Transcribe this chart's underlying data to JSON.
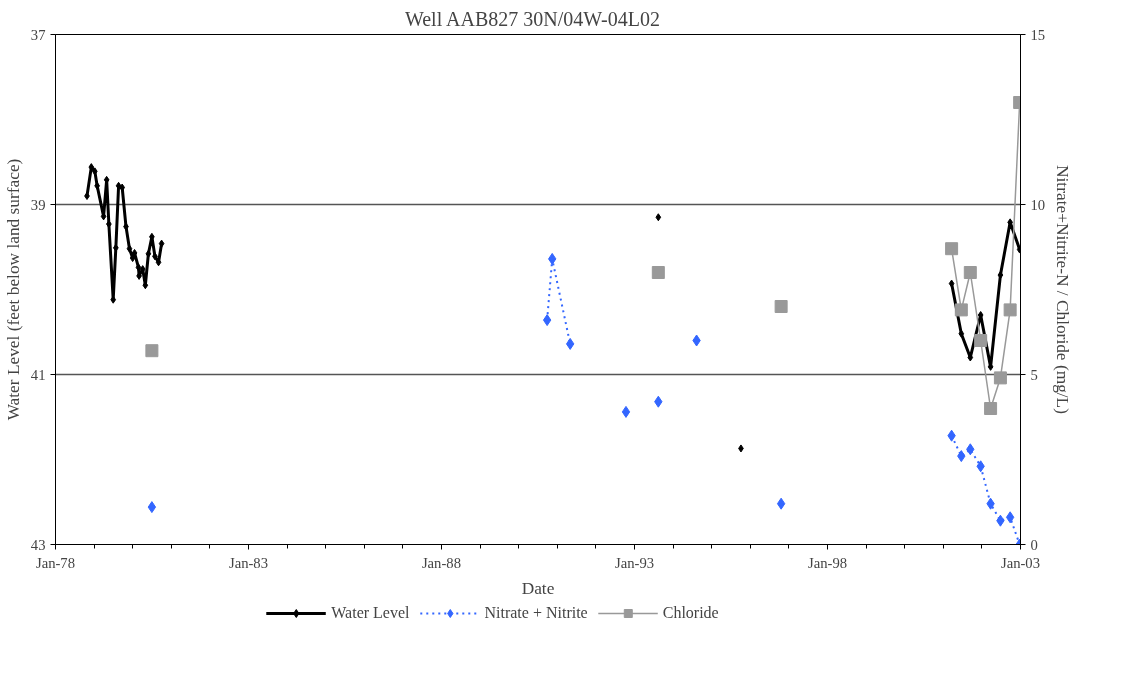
{
  "chart_data": {
    "type": "line",
    "title": "Well AAB827   30N/04W-04L02",
    "xlabel": "Date",
    "ylabel": "Water Level (feet below land surface)",
    "y2label": "Nitrate+Nitrite-N / Chloride (mg/L)",
    "xlim": [
      "1978-01-01",
      "2003-01-01"
    ],
    "xticks": [
      {
        "value": "1978-01-01",
        "label": "Jan-78"
      },
      {
        "value": "1983-01-01",
        "label": "Jan-83"
      },
      {
        "value": "1988-01-01",
        "label": "Jan-88"
      },
      {
        "value": "1993-01-01",
        "label": "Jan-93"
      },
      {
        "value": "1998-01-01",
        "label": "Jan-98"
      },
      {
        "value": "2003-01-01",
        "label": "Jan-03"
      }
    ],
    "ylim": [
      43,
      37
    ],
    "yticks": [
      37,
      39,
      41,
      43
    ],
    "y2lim": [
      0,
      15
    ],
    "y2ticks": [
      0,
      5,
      10,
      15
    ],
    "grid": "y",
    "legend": "bottom",
    "series": [
      {
        "name": "Water Level",
        "color": "#000000",
        "marker": "diamond",
        "line_style": "solid",
        "x": [
          "1978-10-26",
          "1978-12-06",
          "1979-01-08",
          "1979-01-30",
          "1979-04-01",
          "1979-04-30",
          "1979-05-21",
          "1979-07-01",
          "1979-07-26",
          "1979-08-21",
          "1979-09-24",
          "1979-10-30",
          "1979-12-02",
          "1980-01-01",
          "1980-01-19",
          "1980-02-25",
          "1980-03-02",
          "1980-04-05",
          "1980-04-30",
          "1980-05-29",
          "1980-07-01",
          "1980-07-30",
          "1980-09-02",
          "1980-10-01",
          "1987-01-01",
          "1993-08-14",
          "1994-07-01",
          "1995-10-05",
          "1998-07-01",
          "2001-03-20",
          "2001-06-20",
          "2001-09-13",
          "2001-12-20",
          "2002-03-24",
          "2002-06-25",
          "2002-09-25",
          "2002-12-24"
        ],
        "values": [
          38.9,
          38.56,
          38.61,
          38.78,
          39.14,
          38.71,
          39.23,
          40.12,
          39.51,
          38.78,
          38.8,
          39.26,
          39.52,
          39.63,
          39.57,
          39.74,
          39.84,
          39.76,
          39.95,
          39.58,
          39.38,
          39.61,
          39.68,
          39.46,
          null,
          39.15,
          null,
          41.87,
          null,
          39.93,
          40.52,
          40.8,
          40.3,
          40.91,
          39.83,
          39.21,
          39.53
        ]
      },
      {
        "name": "Nitrate + Nitrite",
        "color": "#3366ff",
        "marker": "diamond",
        "line_style": "dotted",
        "axis": "y2",
        "x": [
          "1980-07-01",
          "1985-01-01",
          "1990-09-27",
          "1990-11-14",
          "1991-05-03",
          "1992-01-01",
          "1992-10-12",
          "1993-03-01",
          "1993-08-14",
          "1994-02-01",
          "1994-08-11",
          "1995-09-01",
          "1996-10-19",
          "1999-01-01",
          "2001-03-20",
          "2001-06-20",
          "2001-09-13",
          "2001-12-20",
          "2002-03-24",
          "2002-06-25",
          "2002-09-25",
          "2002-12-24"
        ],
        "values": [
          1.1,
          null,
          6.6,
          8.4,
          5.9,
          null,
          3.9,
          null,
          4.2,
          null,
          6.0,
          null,
          1.2,
          null,
          3.2,
          2.6,
          2.8,
          2.3,
          1.2,
          0.7,
          0.8,
          0.0
        ]
      },
      {
        "name": "Chloride",
        "color": "#999999",
        "marker": "square",
        "line_style": "solid",
        "axis": "y2",
        "x": [
          "1980-07-01",
          "1987-01-01",
          "1993-08-14",
          "1995-03-01",
          "1996-10-19",
          "1999-01-01",
          "2001-03-20",
          "2001-06-20",
          "2001-09-13",
          "2001-12-20",
          "2002-03-24",
          "2002-06-25",
          "2002-09-25",
          "2002-12-24"
        ],
        "values": [
          5.7,
          null,
          8.0,
          null,
          7.0,
          null,
          8.7,
          6.9,
          8.0,
          6.0,
          4.0,
          4.9,
          6.9,
          13.0
        ]
      }
    ]
  }
}
